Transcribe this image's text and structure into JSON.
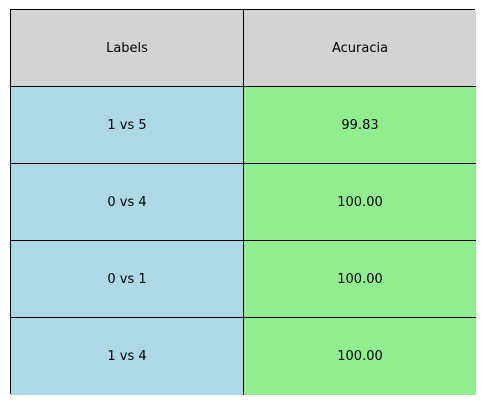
{
  "chart_data": {
    "type": "table",
    "columns": [
      "Labels",
      "Acuracia"
    ],
    "rows": [
      [
        "1 vs 5",
        "99.83"
      ],
      [
        "0 vs 4",
        "100.00"
      ],
      [
        "0 vs 1",
        "100.00"
      ],
      [
        "1 vs 4",
        "100.00"
      ]
    ],
    "colors": {
      "header_bg": "#d3d3d3",
      "labels_bg": "#add8e6",
      "values_bg": "#90ee90",
      "border": "#000000"
    }
  }
}
